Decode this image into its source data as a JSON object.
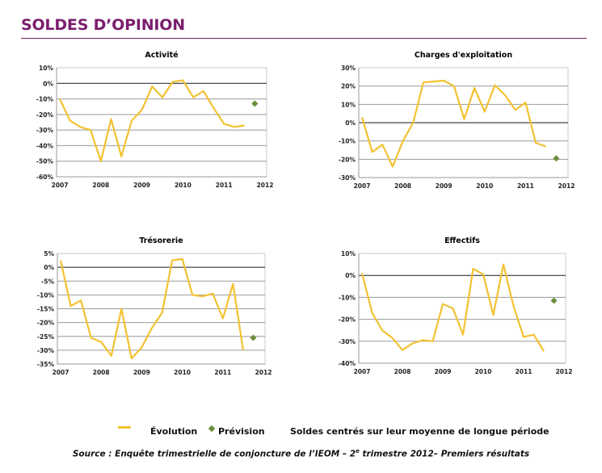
{
  "page": {
    "title": "SOLDES D’OPINION"
  },
  "legend": {
    "evolution_label": "Évolution",
    "prevision_label": "Prévision",
    "note": "Soldes centrés sur leur moyenne de longue période"
  },
  "source": {
    "prefix": "Source : Enquête trimestrielle de conjoncture de l’IEOM – 2",
    "superscript": "e",
    "suffix": " trimestre 2012– Premiers résultats"
  },
  "colors": {
    "title": "#7B1E6E",
    "evolution": "#F2C232",
    "prevision": "#6B8E3A"
  },
  "chart_data": [
    {
      "type": "line",
      "title": "Activité",
      "xlabel": "",
      "ylabel": "",
      "x_ticks": [
        "2007",
        "2008",
        "2009",
        "2010",
        "2011",
        "2012"
      ],
      "x_range": [
        2007,
        2012
      ],
      "ylim": [
        -60,
        10
      ],
      "y_ticks": [
        10,
        0,
        -10,
        -20,
        -30,
        -40,
        -50,
        -60
      ],
      "y_tick_labels": [
        "10%",
        "0%",
        "-10%",
        "-20%",
        "-30%",
        "-40%",
        "-50%",
        "-60%"
      ],
      "grid": true,
      "series": [
        {
          "name": "Évolution",
          "x": [
            2007.0,
            2007.25,
            2007.5,
            2007.75,
            2008.0,
            2008.25,
            2008.5,
            2008.75,
            2009.0,
            2009.25,
            2009.5,
            2009.75,
            2010.0,
            2010.25,
            2010.5,
            2010.75,
            2011.0,
            2011.25,
            2011.5
          ],
          "values": [
            -10,
            -24,
            -28,
            -30,
            -50,
            -23,
            -47,
            -24,
            -17,
            -2,
            -9,
            1,
            2,
            -9,
            -5,
            -16,
            -26,
            -28,
            -27
          ]
        },
        {
          "name": "Prévision",
          "x": [
            2011.75
          ],
          "values": [
            -13
          ]
        }
      ]
    },
    {
      "type": "line",
      "title": "Charges d'exploitation",
      "xlabel": "",
      "ylabel": "",
      "x_ticks": [
        "2007",
        "2008",
        "2009",
        "2010",
        "2011",
        "2012"
      ],
      "x_range": [
        2007,
        2012
      ],
      "ylim": [
        -30,
        30
      ],
      "y_ticks": [
        30,
        20,
        10,
        0,
        -10,
        -20,
        -30
      ],
      "y_tick_labels": [
        "30%",
        "20%",
        "10%",
        "0%",
        "-10%",
        "-20%",
        "-30%"
      ],
      "grid": true,
      "series": [
        {
          "name": "Évolution",
          "x": [
            2007.0,
            2007.25,
            2007.5,
            2007.75,
            2008.0,
            2008.25,
            2008.5,
            2008.75,
            2009.0,
            2009.25,
            2009.5,
            2009.75,
            2010.0,
            2010.25,
            2010.5,
            2010.75,
            2011.0,
            2011.25,
            2011.5
          ],
          "values": [
            3,
            -16,
            -12,
            -24,
            -10,
            0,
            22,
            22.5,
            23,
            20,
            2,
            19,
            6,
            20.5,
            15,
            7,
            11,
            -11,
            -13
          ]
        },
        {
          "name": "Prévision",
          "x": [
            2011.75
          ],
          "values": [
            -19.5
          ]
        }
      ]
    },
    {
      "type": "line",
      "title": "Trésorerie",
      "xlabel": "",
      "ylabel": "",
      "x_ticks": [
        "2007",
        "2008",
        "2009",
        "2010",
        "2011",
        "2012"
      ],
      "x_range": [
        2007,
        2012
      ],
      "ylim": [
        -35,
        5
      ],
      "y_ticks": [
        5,
        0,
        -5,
        -10,
        -15,
        -20,
        -25,
        -30,
        -35
      ],
      "y_tick_labels": [
        "5%",
        "0%",
        "-5%",
        "-10%",
        "-15%",
        "-20%",
        "-25%",
        "-30%",
        "-35%"
      ],
      "grid": true,
      "series": [
        {
          "name": "Évolution",
          "x": [
            2007.0,
            2007.25,
            2007.5,
            2007.75,
            2008.0,
            2008.25,
            2008.5,
            2008.75,
            2009.0,
            2009.25,
            2009.5,
            2009.75,
            2010.0,
            2010.25,
            2010.5,
            2010.75,
            2011.0,
            2011.25,
            2011.5
          ],
          "values": [
            2.5,
            -14,
            -12,
            -25.5,
            -27,
            -32,
            -15,
            -33,
            -29,
            -22,
            -16.5,
            2.5,
            3,
            -10,
            -10.5,
            -9.5,
            -18.5,
            -6,
            -30
          ]
        },
        {
          "name": "Prévision",
          "x": [
            2011.75
          ],
          "values": [
            -25.5
          ]
        }
      ]
    },
    {
      "type": "line",
      "title": "Effectifs",
      "xlabel": "",
      "ylabel": "",
      "x_ticks": [
        "2007",
        "2008",
        "2009",
        "2010",
        "2011",
        "2012"
      ],
      "x_range": [
        2007,
        2012
      ],
      "ylim": [
        -40,
        10
      ],
      "y_ticks": [
        10,
        0,
        -10,
        -20,
        -30,
        -40
      ],
      "y_tick_labels": [
        "10%",
        "0%",
        "-10%",
        "-20%",
        "-30%",
        "-40%"
      ],
      "grid": true,
      "series": [
        {
          "name": "Évolution",
          "x": [
            2007.0,
            2007.25,
            2007.5,
            2007.75,
            2008.0,
            2008.25,
            2008.5,
            2008.75,
            2009.0,
            2009.25,
            2009.5,
            2009.75,
            2010.0,
            2010.25,
            2010.5,
            2010.75,
            2011.0,
            2011.25,
            2011.5
          ],
          "values": [
            1,
            -17,
            -25,
            -28.5,
            -34,
            -31,
            -29.5,
            -30,
            -13,
            -15,
            -27,
            3,
            0.5,
            -18,
            5,
            -14,
            -28,
            -27,
            -34.5
          ]
        },
        {
          "name": "Prévision",
          "x": [
            2011.75
          ],
          "values": [
            -11.5
          ]
        }
      ]
    }
  ]
}
